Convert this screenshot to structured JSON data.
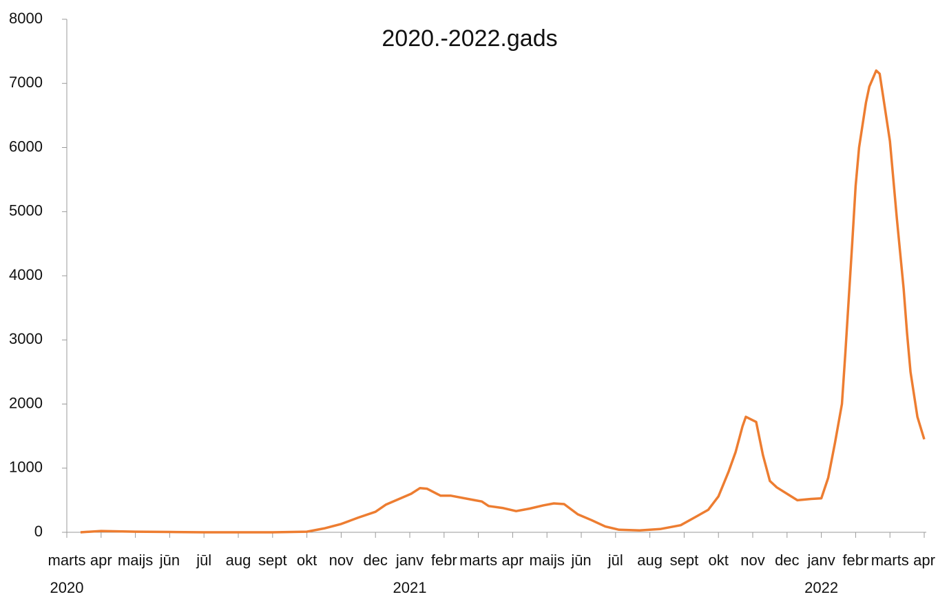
{
  "chart_data": {
    "type": "line",
    "title": "2020.-2022.gads",
    "xlim": [
      0,
      25.06
    ],
    "xticks": [
      {
        "value": 0,
        "label": "marts"
      },
      {
        "value": 1,
        "label": "apr"
      },
      {
        "value": 2,
        "label": "maijs"
      },
      {
        "value": 3,
        "label": "jūn"
      },
      {
        "value": 4,
        "label": "jūl"
      },
      {
        "value": 5,
        "label": "aug"
      },
      {
        "value": 6,
        "label": "sept"
      },
      {
        "value": 7,
        "label": "okt"
      },
      {
        "value": 8,
        "label": "nov"
      },
      {
        "value": 9,
        "label": "dec"
      },
      {
        "value": 10,
        "label": "janv"
      },
      {
        "value": 11,
        "label": "febr"
      },
      {
        "value": 12,
        "label": "marts"
      },
      {
        "value": 13,
        "label": "apr"
      },
      {
        "value": 14,
        "label": "maijs"
      },
      {
        "value": 15,
        "label": "jūn"
      },
      {
        "value": 16,
        "label": "jūl"
      },
      {
        "value": 17,
        "label": "aug"
      },
      {
        "value": 18,
        "label": "sept"
      },
      {
        "value": 19,
        "label": "okt"
      },
      {
        "value": 20,
        "label": "nov"
      },
      {
        "value": 21,
        "label": "dec"
      },
      {
        "value": 22,
        "label": "janv"
      },
      {
        "value": 23,
        "label": "febr"
      },
      {
        "value": 24,
        "label": "marts"
      },
      {
        "value": 25,
        "label": "apr"
      }
    ],
    "year_labels": [
      {
        "value": 0,
        "label": "2020"
      },
      {
        "value": 10,
        "label": "2021"
      },
      {
        "value": 22,
        "label": "2022"
      }
    ],
    "ylim": [
      0,
      8000
    ],
    "yticks": [
      0,
      1000,
      2000,
      3000,
      4000,
      5000,
      6000,
      7000,
      8000
    ],
    "series": [
      {
        "color": "#ed7d31",
        "x": [
          0.4,
          1,
          2,
          3,
          4,
          5,
          6,
          7,
          7.5,
          8,
          8.5,
          9,
          9.3,
          10.04,
          10.3,
          10.5,
          10.9,
          11.2,
          11.9,
          12.1,
          12.3,
          12.7,
          13.1,
          13.5,
          13.9,
          14.2,
          14.5,
          14.9,
          15.3,
          15.7,
          16.1,
          16.7,
          17.3,
          17.9,
          18.3,
          18.7,
          19.0,
          19.3,
          19.5,
          19.7,
          19.8,
          20.1,
          20.3,
          20.5,
          20.7,
          21.0,
          21.3,
          21.7,
          22.0,
          22.2,
          22.4,
          22.6,
          22.7,
          22.9,
          23.0,
          23.1,
          23.3,
          23.4,
          23.6,
          23.7,
          23.8,
          24.0,
          24.2,
          24.4,
          24.5,
          24.6,
          24.8,
          25.0
        ],
        "values": [
          0,
          20,
          10,
          5,
          0,
          0,
          0,
          10,
          60,
          130,
          230,
          320,
          430,
          600,
          690,
          680,
          570,
          570,
          500,
          480,
          410,
          380,
          330,
          370,
          420,
          450,
          440,
          280,
          190,
          90,
          40,
          30,
          50,
          110,
          230,
          350,
          560,
          950,
          1250,
          1650,
          1800,
          1720,
          1200,
          800,
          700,
          600,
          500,
          520,
          530,
          850,
          1400,
          2000,
          2800,
          4500,
          5400,
          6000,
          6700,
          6950,
          7200,
          7150,
          6800,
          6100,
          4900,
          3800,
          3100,
          2500,
          1800,
          1450
        ]
      }
    ]
  }
}
